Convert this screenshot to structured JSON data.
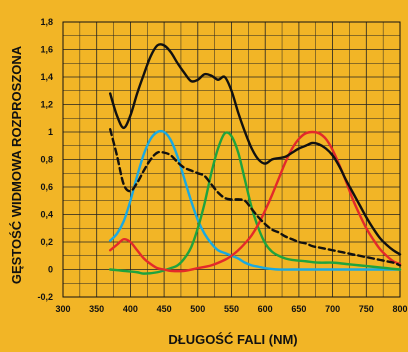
{
  "chart_data": {
    "type": "line",
    "title": "",
    "xlabel": "DŁUGOŚĆ FALI (NM)",
    "ylabel": "GĘSTOŚĆ WIDMOWA ROZPROSZONA",
    "xlim": [
      300,
      800
    ],
    "ylim": [
      -0.2,
      1.8
    ],
    "x_ticks": [
      "300",
      "350",
      "400",
      "450",
      "500",
      "550",
      "600",
      "650",
      "700",
      "750",
      "800"
    ],
    "y_ticks": [
      "-0,2",
      "0",
      "0,2",
      "0,4",
      "0,6",
      "0,8",
      "1",
      "1,2",
      "1,4",
      "1,6",
      "1,8"
    ],
    "grid": true,
    "legend": "none",
    "background_color": "#f2b526",
    "grid_color": "#222222",
    "series": [
      {
        "color": "#111111",
        "style": "solid",
        "x": [
          370,
          380,
          390,
          400,
          410,
          420,
          430,
          440,
          450,
          460,
          470,
          480,
          490,
          500,
          510,
          520,
          530,
          540,
          550,
          560,
          570,
          580,
          590,
          600,
          610,
          620,
          630,
          640,
          650,
          660,
          670,
          680,
          690,
          700,
          710,
          720,
          730,
          740,
          750,
          760,
          770,
          780,
          790,
          800
        ],
        "y": [
          1.28,
          1.12,
          1.03,
          1.12,
          1.28,
          1.42,
          1.55,
          1.63,
          1.63,
          1.58,
          1.5,
          1.43,
          1.37,
          1.38,
          1.42,
          1.41,
          1.38,
          1.4,
          1.3,
          1.14,
          1.0,
          0.88,
          0.8,
          0.77,
          0.8,
          0.81,
          0.82,
          0.85,
          0.88,
          0.9,
          0.92,
          0.91,
          0.88,
          0.83,
          0.75,
          0.65,
          0.56,
          0.47,
          0.38,
          0.3,
          0.23,
          0.18,
          0.14,
          0.11
        ]
      },
      {
        "color": "#111111",
        "style": "dashed",
        "x": [
          370,
          380,
          390,
          400,
          410,
          420,
          430,
          440,
          450,
          460,
          470,
          480,
          490,
          500,
          510,
          520,
          530,
          540,
          550,
          560,
          570,
          580,
          590,
          600,
          610,
          620,
          630,
          640,
          650,
          660,
          670,
          680,
          690,
          700,
          710,
          720,
          730,
          740,
          750,
          760,
          770,
          780,
          790,
          800
        ],
        "y": [
          1.02,
          0.83,
          0.62,
          0.57,
          0.63,
          0.72,
          0.8,
          0.85,
          0.85,
          0.83,
          0.78,
          0.74,
          0.72,
          0.7,
          0.68,
          0.62,
          0.56,
          0.52,
          0.51,
          0.51,
          0.5,
          0.44,
          0.38,
          0.33,
          0.29,
          0.27,
          0.24,
          0.22,
          0.2,
          0.19,
          0.17,
          0.16,
          0.15,
          0.14,
          0.13,
          0.12,
          0.11,
          0.1,
          0.09,
          0.08,
          0.07,
          0.06,
          0.05,
          0.03
        ]
      },
      {
        "color": "#1aa9e1",
        "style": "solid",
        "x": [
          370,
          380,
          390,
          400,
          410,
          420,
          430,
          440,
          450,
          460,
          470,
          480,
          490,
          500,
          510,
          520,
          530,
          540,
          550,
          560,
          570,
          580,
          590,
          600,
          620,
          640,
          660,
          680,
          700,
          720,
          740,
          760,
          780,
          800
        ],
        "y": [
          0.21,
          0.26,
          0.35,
          0.5,
          0.68,
          0.84,
          0.95,
          1.0,
          1.0,
          0.94,
          0.82,
          0.66,
          0.5,
          0.36,
          0.26,
          0.19,
          0.14,
          0.12,
          0.1,
          0.08,
          0.05,
          0.03,
          0.02,
          0.01,
          0.0,
          0.0,
          0.0,
          0.0,
          0.0,
          0.0,
          0.0,
          0.0,
          0.0,
          0.0
        ]
      },
      {
        "color": "#1fa33e",
        "style": "solid",
        "x": [
          370,
          390,
          410,
          420,
          440,
          460,
          470,
          480,
          490,
          500,
          510,
          520,
          530,
          540,
          550,
          560,
          570,
          580,
          590,
          600,
          610,
          620,
          630,
          640,
          660,
          680,
          700,
          720,
          740,
          760,
          780,
          800
        ],
        "y": [
          0.0,
          -0.01,
          -0.02,
          -0.03,
          -0.02,
          0.01,
          0.03,
          0.08,
          0.16,
          0.3,
          0.48,
          0.7,
          0.88,
          0.99,
          0.97,
          0.85,
          0.65,
          0.45,
          0.3,
          0.19,
          0.13,
          0.1,
          0.08,
          0.07,
          0.06,
          0.05,
          0.05,
          0.04,
          0.03,
          0.02,
          0.01,
          0.0
        ]
      },
      {
        "color": "#e32a2a",
        "style": "solid",
        "x": [
          370,
          380,
          390,
          400,
          410,
          420,
          430,
          440,
          450,
          460,
          480,
          500,
          520,
          540,
          550,
          560,
          570,
          580,
          590,
          600,
          610,
          620,
          630,
          640,
          650,
          660,
          670,
          680,
          690,
          700,
          710,
          720,
          730,
          740,
          750,
          760,
          770,
          780,
          790,
          800
        ],
        "y": [
          0.14,
          0.18,
          0.22,
          0.2,
          0.14,
          0.08,
          0.04,
          0.01,
          0.0,
          -0.01,
          -0.01,
          0.01,
          0.03,
          0.07,
          0.1,
          0.14,
          0.19,
          0.25,
          0.33,
          0.43,
          0.54,
          0.66,
          0.78,
          0.88,
          0.95,
          0.99,
          1.0,
          0.99,
          0.95,
          0.87,
          0.76,
          0.64,
          0.51,
          0.4,
          0.3,
          0.22,
          0.15,
          0.1,
          0.06,
          0.04
        ]
      }
    ]
  }
}
